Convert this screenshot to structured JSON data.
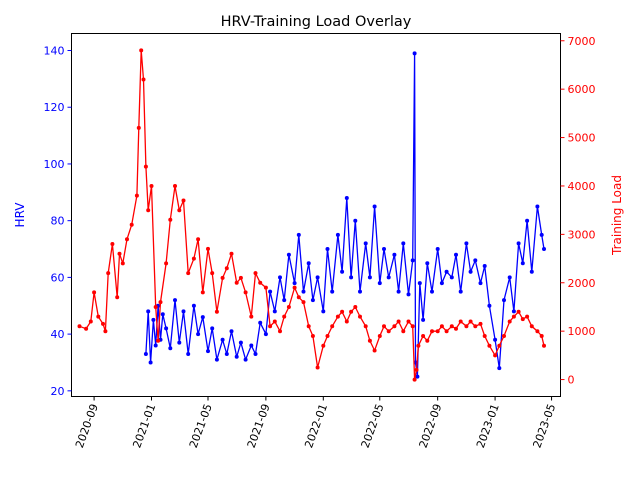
{
  "chart_data": {
    "type": "line",
    "title": "HRV-Training Load Overlay",
    "xlabel": "",
    "xlim": [
      "2020-07-15",
      "2023-05-20"
    ],
    "x_ticks": [
      "2020-09",
      "2021-01",
      "2021-05",
      "2021-09",
      "2022-01",
      "2022-05",
      "2022-09",
      "2023-01",
      "2023-05"
    ],
    "y_left": {
      "label": "HRV",
      "color": "#0000ff",
      "lim": [
        18,
        146
      ],
      "ticks": [
        20,
        40,
        60,
        80,
        100,
        120,
        140
      ]
    },
    "y_right": {
      "label": "Training Load",
      "color": "#ff0000",
      "lim": [
        -350,
        7150
      ],
      "ticks": [
        0,
        1000,
        2000,
        3000,
        4000,
        5000,
        6000,
        7000
      ]
    },
    "series": [
      {
        "axis": "left",
        "color": "#0000ff",
        "marker": "circle",
        "x": [
          "2020-12-20",
          "2020-12-25",
          "2020-12-30",
          "2021-01-05",
          "2021-01-10",
          "2021-01-15",
          "2021-01-20",
          "2021-01-25",
          "2021-02-01",
          "2021-02-10",
          "2021-02-20",
          "2021-03-01",
          "2021-03-10",
          "2021-03-20",
          "2021-04-01",
          "2021-04-10",
          "2021-04-20",
          "2021-05-01",
          "2021-05-10",
          "2021-05-20",
          "2021-06-01",
          "2021-06-10",
          "2021-06-20",
          "2021-07-01",
          "2021-07-10",
          "2021-07-20",
          "2021-08-01",
          "2021-08-10",
          "2021-08-20",
          "2021-09-01",
          "2021-09-10",
          "2021-09-20",
          "2021-10-01",
          "2021-10-10",
          "2021-10-20",
          "2021-11-01",
          "2021-11-10",
          "2021-11-20",
          "2021-12-01",
          "2021-12-10",
          "2021-12-20",
          "2022-01-01",
          "2022-01-10",
          "2022-01-20",
          "2022-02-01",
          "2022-02-10",
          "2022-02-20",
          "2022-03-01",
          "2022-03-10",
          "2022-03-20",
          "2022-04-01",
          "2022-04-10",
          "2022-04-20",
          "2022-05-01",
          "2022-05-10",
          "2022-05-20",
          "2022-06-01",
          "2022-06-10",
          "2022-06-20",
          "2022-07-01",
          "2022-07-10",
          "2022-07-14",
          "2022-07-16",
          "2022-07-20",
          "2022-07-25",
          "2022-08-01",
          "2022-08-10",
          "2022-08-20",
          "2022-09-01",
          "2022-09-10",
          "2022-09-20",
          "2022-10-01",
          "2022-10-10",
          "2022-10-20",
          "2022-11-01",
          "2022-11-10",
          "2022-11-20",
          "2022-12-01",
          "2022-12-10",
          "2022-12-20",
          "2023-01-01",
          "2023-01-10",
          "2023-01-20",
          "2023-02-01",
          "2023-02-10",
          "2023-02-20",
          "2023-03-01",
          "2023-03-10",
          "2023-03-20",
          "2023-04-01",
          "2023-04-10",
          "2023-04-15"
        ],
        "values": [
          33,
          48,
          30,
          45,
          36,
          50,
          38,
          47,
          42,
          35,
          52,
          37,
          48,
          33,
          50,
          40,
          46,
          34,
          42,
          31,
          38,
          33,
          41,
          32,
          37,
          31,
          36,
          33,
          44,
          40,
          55,
          48,
          60,
          52,
          68,
          58,
          75,
          55,
          65,
          52,
          60,
          48,
          70,
          55,
          75,
          62,
          88,
          60,
          80,
          55,
          72,
          60,
          85,
          58,
          70,
          60,
          68,
          55,
          72,
          54,
          66,
          139,
          30,
          25,
          58,
          45,
          65,
          55,
          70,
          58,
          62,
          60,
          68,
          55,
          72,
          62,
          66,
          58,
          64,
          50,
          38,
          28,
          52,
          60,
          48,
          72,
          65,
          80,
          62,
          85,
          75,
          70
        ]
      },
      {
        "axis": "right",
        "color": "#ff0000",
        "marker": "circle",
        "x": [
          "2020-08-01",
          "2020-08-15",
          "2020-08-25",
          "2020-09-01",
          "2020-09-10",
          "2020-09-20",
          "2020-09-25",
          "2020-10-01",
          "2020-10-10",
          "2020-10-20",
          "2020-10-25",
          "2020-11-01",
          "2020-11-10",
          "2020-11-20",
          "2020-12-01",
          "2020-12-05",
          "2020-12-10",
          "2020-12-15",
          "2020-12-20",
          "2020-12-25",
          "2021-01-01",
          "2021-01-10",
          "2021-01-15",
          "2021-01-20",
          "2021-02-01",
          "2021-02-10",
          "2021-02-20",
          "2021-03-01",
          "2021-03-10",
          "2021-03-20",
          "2021-04-01",
          "2021-04-10",
          "2021-04-20",
          "2021-05-01",
          "2021-05-10",
          "2021-05-20",
          "2021-06-01",
          "2021-06-10",
          "2021-06-20",
          "2021-07-01",
          "2021-07-10",
          "2021-07-20",
          "2021-08-01",
          "2021-08-10",
          "2021-08-20",
          "2021-09-01",
          "2021-09-10",
          "2021-09-20",
          "2021-10-01",
          "2021-10-10",
          "2021-10-20",
          "2021-11-01",
          "2021-11-10",
          "2021-11-20",
          "2021-12-01",
          "2021-12-10",
          "2021-12-20",
          "2022-01-01",
          "2022-01-10",
          "2022-01-20",
          "2022-02-01",
          "2022-02-10",
          "2022-02-20",
          "2022-03-01",
          "2022-03-10",
          "2022-03-20",
          "2022-04-01",
          "2022-04-10",
          "2022-04-20",
          "2022-05-01",
          "2022-05-10",
          "2022-05-20",
          "2022-06-01",
          "2022-06-10",
          "2022-06-20",
          "2022-07-01",
          "2022-07-10",
          "2022-07-14",
          "2022-07-18",
          "2022-07-22",
          "2022-08-01",
          "2022-08-10",
          "2022-08-20",
          "2022-09-01",
          "2022-09-10",
          "2022-09-20",
          "2022-10-01",
          "2022-10-10",
          "2022-10-20",
          "2022-11-01",
          "2022-11-10",
          "2022-11-20",
          "2022-12-01",
          "2022-12-10",
          "2022-12-20",
          "2023-01-01",
          "2023-01-10",
          "2023-01-20",
          "2023-02-01",
          "2023-02-10",
          "2023-02-20",
          "2023-03-01",
          "2023-03-10",
          "2023-03-20",
          "2023-04-01",
          "2023-04-10",
          "2023-04-15"
        ],
        "values": [
          1100,
          1050,
          1200,
          1800,
          1300,
          1150,
          1000,
          2200,
          2800,
          1700,
          2600,
          2400,
          2900,
          3200,
          3800,
          5200,
          6800,
          6200,
          4400,
          3500,
          4000,
          1500,
          800,
          1600,
          2400,
          3300,
          4000,
          3500,
          3700,
          2200,
          2500,
          2900,
          1800,
          2700,
          2200,
          1400,
          2100,
          2300,
          2600,
          2000,
          2100,
          1800,
          1300,
          2200,
          2000,
          1900,
          1100,
          1200,
          1000,
          1300,
          1500,
          1900,
          1700,
          1600,
          1100,
          900,
          250,
          700,
          900,
          1100,
          1300,
          1400,
          1200,
          1400,
          1500,
          1300,
          1100,
          800,
          600,
          900,
          1100,
          1000,
          1100,
          1200,
          1000,
          1200,
          1100,
          0,
          200,
          700,
          900,
          800,
          1000,
          1000,
          1100,
          1000,
          1100,
          1050,
          1200,
          1100,
          1200,
          1100,
          1150,
          900,
          700,
          500,
          700,
          900,
          1200,
          1300,
          1400,
          1250,
          1300,
          1100,
          1000,
          900,
          700
        ]
      }
    ]
  }
}
